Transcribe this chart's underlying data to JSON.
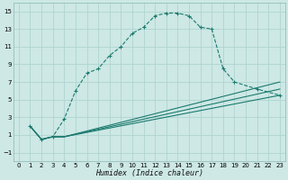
{
  "xlabel": "Humidex (Indice chaleur)",
  "bg_color": "#cde8e5",
  "grid_color": "#b0d4d0",
  "line_color": "#1a7a6e",
  "xlim": [
    -0.5,
    23.5
  ],
  "ylim": [
    -2,
    16
  ],
  "xticks": [
    0,
    1,
    2,
    3,
    4,
    5,
    6,
    7,
    8,
    9,
    10,
    11,
    12,
    13,
    14,
    15,
    16,
    17,
    18,
    19,
    20,
    21,
    22,
    23
  ],
  "yticks": [
    -1,
    1,
    3,
    5,
    7,
    9,
    11,
    13,
    15
  ],
  "main_line_x": [
    1,
    2,
    3,
    4,
    5,
    6,
    7,
    8,
    9,
    10,
    11,
    12,
    13,
    14,
    15,
    16,
    17,
    18,
    19,
    21,
    23
  ],
  "main_line_y": [
    2.0,
    0.5,
    0.8,
    2.8,
    6.0,
    8.0,
    8.5,
    10.0,
    11.0,
    12.5,
    13.2,
    14.5,
    14.8,
    14.8,
    14.5,
    13.2,
    13.0,
    8.5,
    7.0,
    6.2,
    5.5
  ],
  "line2_x": [
    1,
    2,
    3,
    4,
    23
  ],
  "line2_y": [
    2.0,
    0.5,
    0.8,
    0.8,
    5.5
  ],
  "line3_x": [
    1,
    2,
    3,
    4,
    23
  ],
  "line3_y": [
    2.0,
    0.5,
    0.8,
    0.8,
    6.2
  ],
  "line4_x": [
    1,
    2,
    3,
    4,
    23
  ],
  "line4_y": [
    2.0,
    0.5,
    0.8,
    0.8,
    7.0
  ]
}
